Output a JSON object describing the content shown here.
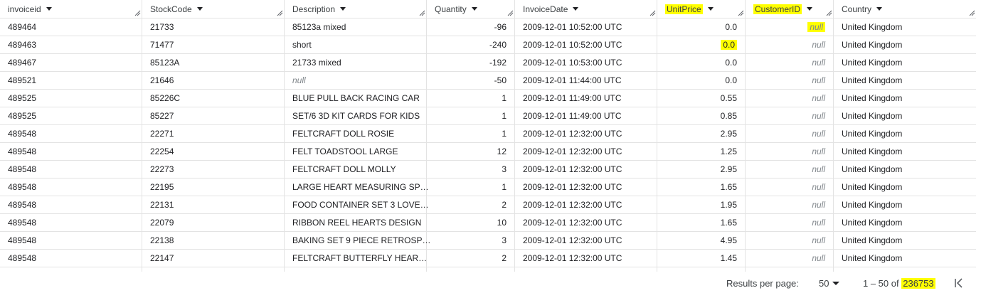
{
  "columns": [
    {
      "label": "invoiceid",
      "highlighted": false
    },
    {
      "label": "StockCode",
      "highlighted": false
    },
    {
      "label": "Description",
      "highlighted": false
    },
    {
      "label": "Quantity",
      "highlighted": false
    },
    {
      "label": "InvoiceDate",
      "highlighted": false
    },
    {
      "label": "UnitPrice",
      "highlighted": true
    },
    {
      "label": "CustomerID",
      "highlighted": true
    },
    {
      "label": "Country",
      "highlighted": false
    }
  ],
  "rows": [
    {
      "invoiceid": "489464",
      "stockcode": "21733",
      "description": "85123a mixed",
      "quantity": "-96",
      "invoicedate": "2009-12-01 10:52:00 UTC",
      "unitprice": "0.0",
      "customerid": "null",
      "country": "United Kingdom"
    },
    {
      "invoiceid": "489463",
      "stockcode": "71477",
      "description": "short",
      "quantity": "-240",
      "invoicedate": "2009-12-01 10:52:00 UTC",
      "unitprice": "0.0",
      "customerid": "null",
      "country": "United Kingdom"
    },
    {
      "invoiceid": "489467",
      "stockcode": "85123A",
      "description": "21733 mixed",
      "quantity": "-192",
      "invoicedate": "2009-12-01 10:53:00 UTC",
      "unitprice": "0.0",
      "customerid": "null",
      "country": "United Kingdom"
    },
    {
      "invoiceid": "489521",
      "stockcode": "21646",
      "description": "null",
      "quantity": "-50",
      "invoicedate": "2009-12-01 11:44:00 UTC",
      "unitprice": "0.0",
      "customerid": "null",
      "country": "United Kingdom"
    },
    {
      "invoiceid": "489525",
      "stockcode": "85226C",
      "description": "BLUE PULL BACK RACING CAR",
      "quantity": "1",
      "invoicedate": "2009-12-01 11:49:00 UTC",
      "unitprice": "0.55",
      "customerid": "null",
      "country": "United Kingdom"
    },
    {
      "invoiceid": "489525",
      "stockcode": "85227",
      "description": "SET/6 3D KIT CARDS FOR KIDS",
      "quantity": "1",
      "invoicedate": "2009-12-01 11:49:00 UTC",
      "unitprice": "0.85",
      "customerid": "null",
      "country": "United Kingdom"
    },
    {
      "invoiceid": "489548",
      "stockcode": "22271",
      "description": "FELTCRAFT DOLL ROSIE",
      "quantity": "1",
      "invoicedate": "2009-12-01 12:32:00 UTC",
      "unitprice": "2.95",
      "customerid": "null",
      "country": "United Kingdom"
    },
    {
      "invoiceid": "489548",
      "stockcode": "22254",
      "description": "FELT TOADSTOOL LARGE",
      "quantity": "12",
      "invoicedate": "2009-12-01 12:32:00 UTC",
      "unitprice": "1.25",
      "customerid": "null",
      "country": "United Kingdom"
    },
    {
      "invoiceid": "489548",
      "stockcode": "22273",
      "description": "FELTCRAFT DOLL MOLLY",
      "quantity": "3",
      "invoicedate": "2009-12-01 12:32:00 UTC",
      "unitprice": "2.95",
      "customerid": "null",
      "country": "United Kingdom"
    },
    {
      "invoiceid": "489548",
      "stockcode": "22195",
      "description": "LARGE HEART MEASURING SP…",
      "quantity": "1",
      "invoicedate": "2009-12-01 12:32:00 UTC",
      "unitprice": "1.65",
      "customerid": "null",
      "country": "United Kingdom"
    },
    {
      "invoiceid": "489548",
      "stockcode": "22131",
      "description": "FOOD CONTAINER SET 3 LOVE…",
      "quantity": "2",
      "invoicedate": "2009-12-01 12:32:00 UTC",
      "unitprice": "1.95",
      "customerid": "null",
      "country": "United Kingdom"
    },
    {
      "invoiceid": "489548",
      "stockcode": "22079",
      "description": "RIBBON REEL HEARTS DESIGN",
      "quantity": "10",
      "invoicedate": "2009-12-01 12:32:00 UTC",
      "unitprice": "1.65",
      "customerid": "null",
      "country": "United Kingdom"
    },
    {
      "invoiceid": "489548",
      "stockcode": "22138",
      "description": "BAKING SET 9 PIECE RETROSP…",
      "quantity": "3",
      "invoicedate": "2009-12-01 12:32:00 UTC",
      "unitprice": "4.95",
      "customerid": "null",
      "country": "United Kingdom"
    },
    {
      "invoiceid": "489548",
      "stockcode": "22147",
      "description": "FELTCRAFT BUTTERFLY HEAR…",
      "quantity": "2",
      "invoicedate": "2009-12-01 12:32:00 UTC",
      "unitprice": "1.45",
      "customerid": "null",
      "country": "United Kingdom"
    }
  ],
  "highlighted_cells": [
    {
      "row": 0,
      "col": "customerid"
    },
    {
      "row": 1,
      "col": "unitprice"
    }
  ],
  "footer": {
    "results_per_page_label": "Results per page:",
    "results_per_page_value": "50",
    "range_prefix": "1 – 50 of",
    "total": "236753",
    "total_highlighted": true
  },
  "colors": {
    "highlight": "#ffff00",
    "grid_line": "#e3e3e3",
    "null_text": "#80868b"
  },
  "icons": {
    "sort": "triangle-down-icon",
    "resize": "resize-handle-icon",
    "first_page": "first-page-icon"
  }
}
